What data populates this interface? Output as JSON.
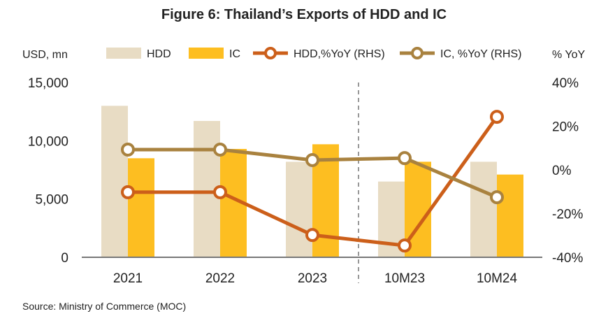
{
  "chart_data": {
    "type": "bar",
    "title": "Figure 6: Thailand’s Exports of HDD and IC",
    "ylabel": "USD, mn",
    "y2label": "% YoY",
    "categories": [
      "2021",
      "2022",
      "2023",
      "10M23",
      "10M24"
    ],
    "ylim": [
      0,
      15000
    ],
    "yticks": [
      "0",
      "5,000",
      "10,000",
      "15,000"
    ],
    "y2lim": [
      -40,
      40
    ],
    "y2ticks": [
      "-40%",
      "-20%",
      "0%",
      "20%",
      "40%"
    ],
    "series": [
      {
        "name": "HDD",
        "type": "bar",
        "axis": "left",
        "color": "#E8DCC4",
        "values": [
          13000,
          11700,
          8200,
          6500,
          8200
        ]
      },
      {
        "name": "IC",
        "type": "bar",
        "axis": "left",
        "color": "#FDBE21",
        "values": [
          8500,
          9300,
          9700,
          8200,
          7100
        ]
      },
      {
        "name": "HDD,%YoY (RHS)",
        "type": "line",
        "axis": "right",
        "color": "#CC5F1A",
        "values": [
          -10.2,
          -10.2,
          -29.8,
          -34.6,
          24.3
        ]
      },
      {
        "name": "IC, %YoY (RHS)",
        "type": "line",
        "axis": "right",
        "color": "#A9823F",
        "values": [
          9.3,
          9.3,
          4.5,
          5.4,
          -12.5
        ]
      }
    ],
    "legend": "top",
    "grid": false
  },
  "source": "Source: Ministry of Commerce (MOC)"
}
